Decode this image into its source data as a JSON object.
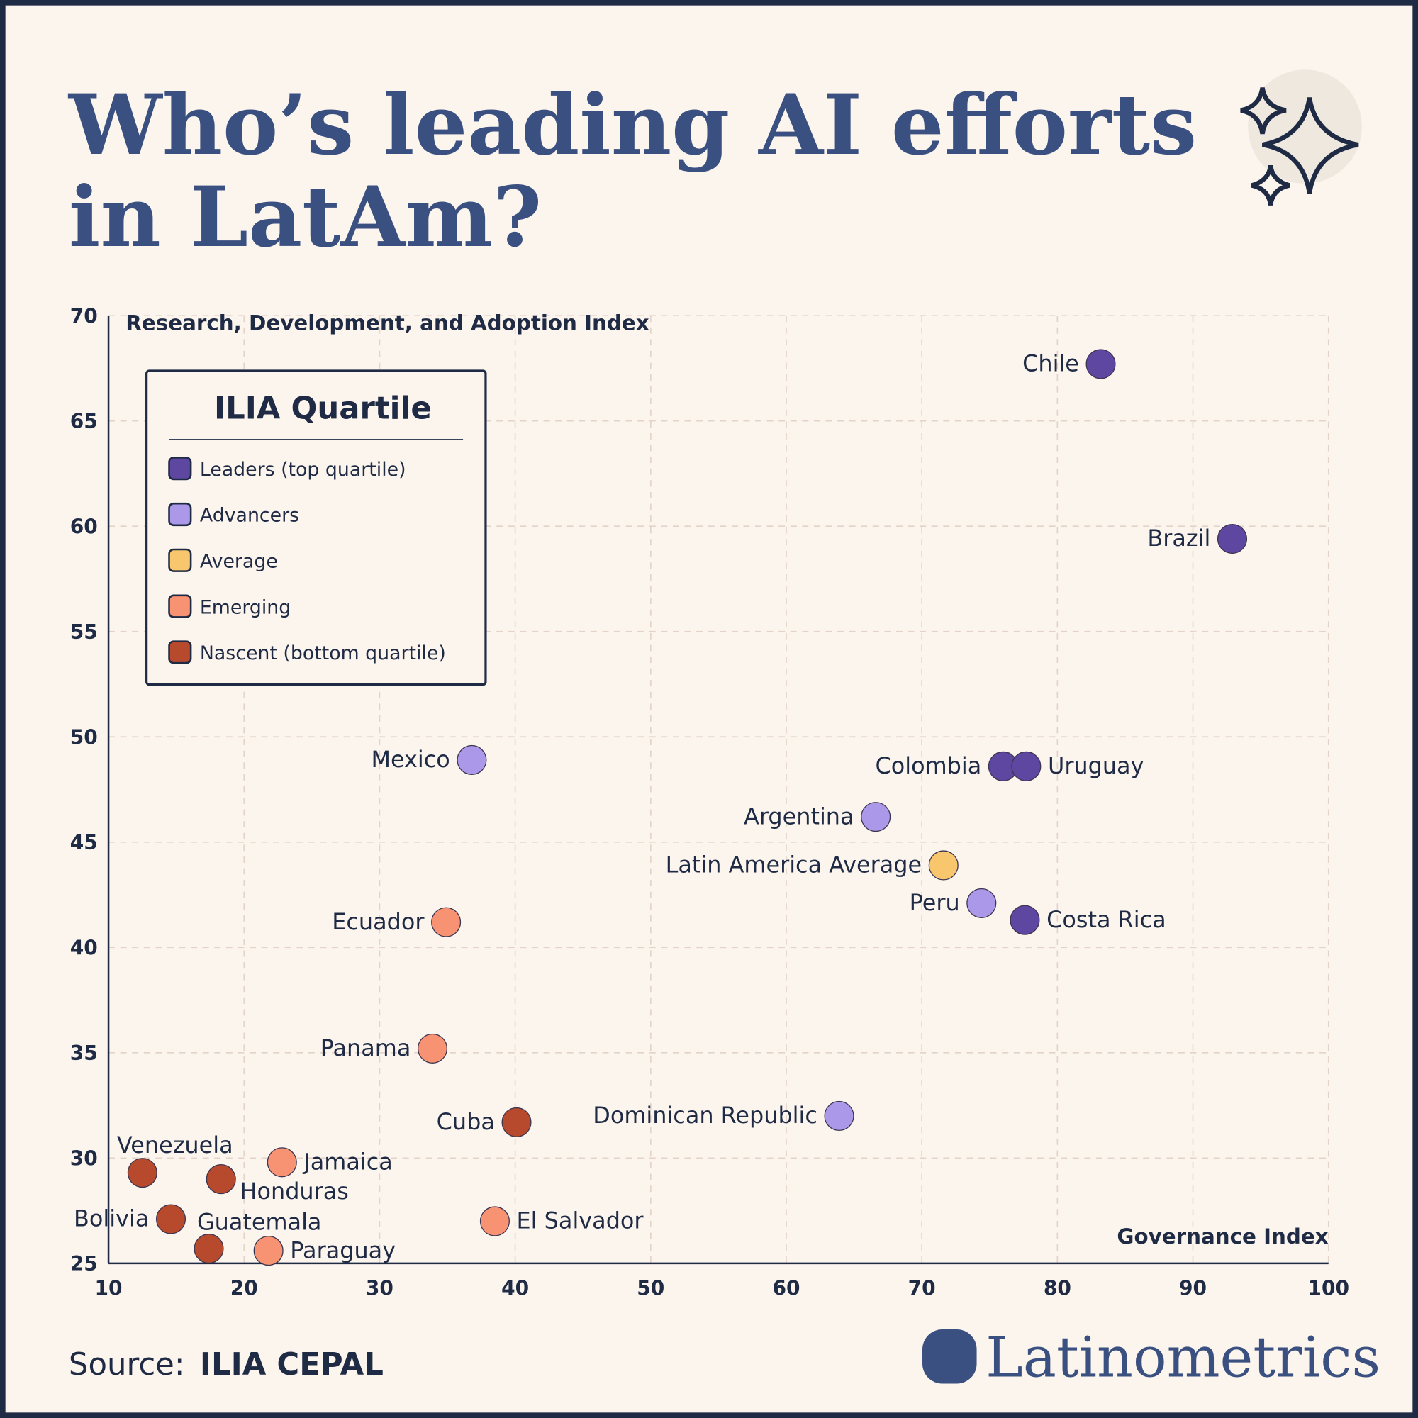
{
  "chart_data": {
    "type": "scatter",
    "title": "Who’s leading AI efforts",
    "title_line2": "in LatAm?",
    "y_label": "Research, Development, and Adoption Index",
    "x_label": "Governance Index",
    "legend_title": "ILIA Quartile",
    "xlim": [
      10,
      100
    ],
    "xticks": [
      10,
      20,
      30,
      40,
      50,
      60,
      70,
      80,
      90,
      100
    ],
    "ylim": [
      25,
      70
    ],
    "yticks": [
      25,
      30,
      35,
      40,
      45,
      50,
      55,
      60,
      65,
      70
    ],
    "grid": true,
    "series": [
      {
        "name": "Leaders (top quartile)",
        "color": "#5e47a0",
        "labels": [
          "Chile",
          "Brazil",
          "Colombia",
          "Uruguay",
          "Costa Rica"
        ],
        "x": [
          83.2,
          92.9,
          76.0,
          77.7,
          77.6
        ],
        "values": [
          67.7,
          59.4,
          48.6,
          48.6,
          41.3
        ]
      },
      {
        "name": "Advancers",
        "color": "#ac98e8",
        "labels": [
          "Mexico",
          "Argentina",
          "Peru",
          "Dominican Republic"
        ],
        "x": [
          36.8,
          66.6,
          74.4,
          63.9
        ],
        "values": [
          48.9,
          46.2,
          42.1,
          32.0
        ]
      },
      {
        "name": "Average",
        "color": "#f8c66c",
        "labels": [
          "Latin America Average"
        ],
        "x": [
          71.6
        ],
        "values": [
          43.9
        ]
      },
      {
        "name": "Emerging",
        "color": "#f79272",
        "labels": [
          "Ecuador",
          "Panama",
          "Jamaica",
          "El Salvador",
          "Paraguay"
        ],
        "x": [
          34.9,
          33.9,
          22.8,
          38.5,
          21.8
        ],
        "values": [
          41.2,
          35.2,
          29.8,
          27.0,
          25.6
        ]
      },
      {
        "name": "Nascent (bottom quartile)",
        "color": "#b74a2c",
        "labels": [
          "Cuba",
          "Venezuela",
          "Honduras",
          "Bolivia",
          "Guatemala"
        ],
        "x": [
          40.1,
          12.5,
          18.3,
          14.6,
          17.4
        ],
        "values": [
          31.7,
          29.3,
          29.0,
          27.1,
          25.7
        ]
      }
    ],
    "source_label": "Source:",
    "source_name": "ILIA CEPAL",
    "brand": "Latinometrics"
  }
}
